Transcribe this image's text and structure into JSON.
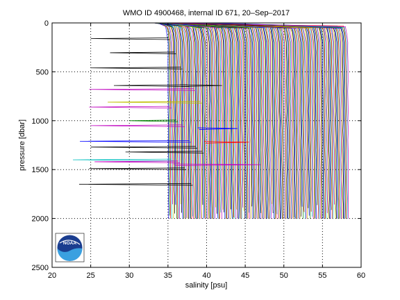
{
  "chart_data": {
    "type": "line",
    "title": "WMO ID 4900468, internal ID 671, 20–Sep–2017",
    "xlabel": "salinity [psu]",
    "ylabel": "pressure [dbar]",
    "xlim": [
      20,
      60
    ],
    "ylim": [
      0,
      2500
    ],
    "y_reversed": true,
    "grid": true,
    "x_ticks": [
      20,
      25,
      30,
      35,
      40,
      45,
      50,
      55,
      60
    ],
    "y_ticks": [
      0,
      500,
      1000,
      1500,
      2000,
      2500
    ],
    "x_tick_labels": [
      "20",
      "25",
      "30",
      "35",
      "40",
      "45",
      "50",
      "55",
      "60"
    ],
    "y_tick_labels": [
      "0",
      "500",
      "1000",
      "1500",
      "2000",
      "2500"
    ],
    "series_description": "Waterfall of ~180 salinity profiles (0–2000 dbar), each offset in salinity; near-surface values start ~33–34 psu and rise, profiles fan from ~35 to ~59 psu, with spurious low-salinity spikes at depth.",
    "profile_count": 180,
    "profile_start_salinity": 35.0,
    "profile_offset_psu": 0.13,
    "profile_max_pressure": 2000,
    "surface_salinity": 33.0,
    "colors": [
      "#0000ff",
      "#008000",
      "#ff0000",
      "#00bfbf",
      "#bf00bf",
      "#bfbf00",
      "#000000"
    ],
    "spikes": [
      {
        "pressure": 160,
        "salinity": 25.0,
        "color": "#000000"
      },
      {
        "pressure": 305,
        "salinity": 27.5,
        "color": "#000000"
      },
      {
        "pressure": 460,
        "salinity": 25.0,
        "color": "#000000"
      },
      {
        "pressure": 640,
        "salinity": 28.0,
        "color": "#000000"
      },
      {
        "pressure": 680,
        "salinity": 24.8,
        "color": "#bf00bf"
      },
      {
        "pressure": 810,
        "salinity": 27.2,
        "color": "#bfbf00"
      },
      {
        "pressure": 860,
        "salinity": 24.8,
        "color": "#bf00bf"
      },
      {
        "pressure": 1000,
        "salinity": 30.0,
        "color": "#008000"
      },
      {
        "pressure": 1050,
        "salinity": 25.0,
        "color": "#bf00bf"
      },
      {
        "pressure": 1210,
        "salinity": 23.6,
        "color": "#0000ff"
      },
      {
        "pressure": 1270,
        "salinity": 25.0,
        "color": "#000000"
      },
      {
        "pressure": 1320,
        "salinity": 29.5,
        "color": "#000000"
      },
      {
        "pressure": 1400,
        "salinity": 22.7,
        "color": "#00bfbf"
      },
      {
        "pressure": 1420,
        "salinity": 25.5,
        "color": "#bf00bf"
      },
      {
        "pressure": 1490,
        "salinity": 24.8,
        "color": "#000000"
      },
      {
        "pressure": 1650,
        "salinity": 23.5,
        "color": "#000000"
      },
      {
        "pressure": 1080,
        "salinity": 44.0,
        "color": "#0000ff"
      },
      {
        "pressure": 1220,
        "salinity": 45.5,
        "color": "#ff0000"
      },
      {
        "pressure": 1450,
        "salinity": 47.0,
        "color": "#bf00bf"
      },
      {
        "pressure": 640,
        "salinity": 42.0,
        "color": "#000000"
      }
    ]
  },
  "logo": {
    "label": "NOAA"
  }
}
